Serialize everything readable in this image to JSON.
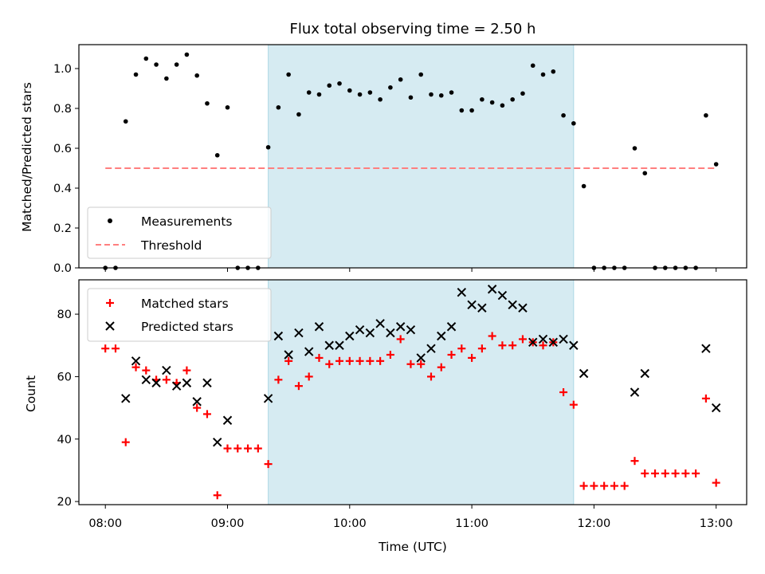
{
  "colors": {
    "span": "#add8e6",
    "measurement": "#000000",
    "threshold": "#ff7f7f",
    "matched": "#ff0000",
    "predicted": "#000000"
  },
  "chart_data": [
    {
      "type": "scatter",
      "title": "Flux total observing time = 2.50 h",
      "xlabel": "",
      "ylabel": "Matched/Predicted stars",
      "xlim": [
        "07:47",
        "13:15"
      ],
      "ylim": [
        0,
        1.12
      ],
      "yticks": [
        "0.0",
        "0.2",
        "0.4",
        "0.6",
        "0.8",
        "1.0"
      ],
      "shaded_span": [
        "09:20",
        "11:50"
      ],
      "threshold": {
        "name": "Threshold",
        "y": 0.5,
        "x": [
          "08:00",
          "13:00"
        ],
        "style": "dashed"
      },
      "legend": {
        "placement": "lower-left",
        "entries": [
          "Measurements",
          "Threshold"
        ]
      },
      "series": [
        {
          "name": "Measurements",
          "marker": "dot",
          "points": [
            [
              "08:00",
              0.0
            ],
            [
              "08:05",
              0.0
            ],
            [
              "08:10",
              0.735
            ],
            [
              "08:15",
              0.97
            ],
            [
              "08:20",
              1.05
            ],
            [
              "08:25",
              1.02
            ],
            [
              "08:30",
              0.95
            ],
            [
              "08:35",
              1.02
            ],
            [
              "08:40",
              1.07
            ],
            [
              "08:45",
              0.965
            ],
            [
              "08:50",
              0.825
            ],
            [
              "08:55",
              0.565
            ],
            [
              "09:00",
              0.805
            ],
            [
              "09:05",
              0.0
            ],
            [
              "09:10",
              0.0
            ],
            [
              "09:15",
              0.0
            ],
            [
              "09:20",
              0.605
            ],
            [
              "09:25",
              0.805
            ],
            [
              "09:30",
              0.97
            ],
            [
              "09:35",
              0.77
            ],
            [
              "09:40",
              0.88
            ],
            [
              "09:45",
              0.87
            ],
            [
              "09:50",
              0.915
            ],
            [
              "09:55",
              0.925
            ],
            [
              "10:00",
              0.89
            ],
            [
              "10:05",
              0.87
            ],
            [
              "10:10",
              0.88
            ],
            [
              "10:15",
              0.845
            ],
            [
              "10:20",
              0.905
            ],
            [
              "10:25",
              0.945
            ],
            [
              "10:30",
              0.855
            ],
            [
              "10:35",
              0.97
            ],
            [
              "10:40",
              0.87
            ],
            [
              "10:45",
              0.865
            ],
            [
              "10:50",
              0.88
            ],
            [
              "10:55",
              0.79
            ],
            [
              "11:00",
              0.79
            ],
            [
              "11:05",
              0.845
            ],
            [
              "11:10",
              0.83
            ],
            [
              "11:15",
              0.815
            ],
            [
              "11:20",
              0.845
            ],
            [
              "11:25",
              0.875
            ],
            [
              "11:30",
              1.015
            ],
            [
              "11:35",
              0.97
            ],
            [
              "11:40",
              0.985
            ],
            [
              "11:45",
              0.765
            ],
            [
              "11:50",
              0.725
            ],
            [
              "11:55",
              0.41
            ],
            [
              "12:00",
              0.0
            ],
            [
              "12:05",
              0.0
            ],
            [
              "12:10",
              0.0
            ],
            [
              "12:15",
              0.0
            ],
            [
              "12:20",
              0.6
            ],
            [
              "12:25",
              0.475
            ],
            [
              "12:30",
              0.0
            ],
            [
              "12:35",
              0.0
            ],
            [
              "12:40",
              0.0
            ],
            [
              "12:45",
              0.0
            ],
            [
              "12:50",
              0.0
            ],
            [
              "12:55",
              0.765
            ],
            [
              "13:00",
              0.52
            ]
          ]
        }
      ]
    },
    {
      "type": "scatter",
      "title": "",
      "xlabel": "Time (UTC)",
      "ylabel": "Count",
      "xlim": [
        "07:47",
        "13:15"
      ],
      "ylim": [
        19,
        91
      ],
      "yticks": [
        "20",
        "40",
        "60",
        "80"
      ],
      "xticks": [
        "08:00",
        "09:00",
        "10:00",
        "11:00",
        "12:00",
        "13:00"
      ],
      "shaded_span": [
        "09:20",
        "11:50"
      ],
      "legend": {
        "placement": "upper-left",
        "entries": [
          "Matched stars",
          "Predicted stars"
        ]
      },
      "series": [
        {
          "name": "Matched stars",
          "marker": "plus",
          "points": [
            [
              "08:00",
              69
            ],
            [
              "08:05",
              69
            ],
            [
              "08:10",
              39
            ],
            [
              "08:15",
              63
            ],
            [
              "08:20",
              62
            ],
            [
              "08:25",
              59
            ],
            [
              "08:30",
              59
            ],
            [
              "08:35",
              58
            ],
            [
              "08:40",
              62
            ],
            [
              "08:45",
              50
            ],
            [
              "08:50",
              48
            ],
            [
              "08:55",
              22
            ],
            [
              "09:00",
              37
            ],
            [
              "09:05",
              37
            ],
            [
              "09:10",
              37
            ],
            [
              "09:15",
              37
            ],
            [
              "09:20",
              32
            ],
            [
              "09:25",
              59
            ],
            [
              "09:30",
              65
            ],
            [
              "09:35",
              57
            ],
            [
              "09:40",
              60
            ],
            [
              "09:45",
              66
            ],
            [
              "09:50",
              64
            ],
            [
              "09:55",
              65
            ],
            [
              "10:00",
              65
            ],
            [
              "10:05",
              65
            ],
            [
              "10:10",
              65
            ],
            [
              "10:15",
              65
            ],
            [
              "10:20",
              67
            ],
            [
              "10:25",
              72
            ],
            [
              "10:30",
              64
            ],
            [
              "10:35",
              64
            ],
            [
              "10:40",
              60
            ],
            [
              "10:45",
              63
            ],
            [
              "10:50",
              67
            ],
            [
              "10:55",
              69
            ],
            [
              "11:00",
              66
            ],
            [
              "11:05",
              69
            ],
            [
              "11:10",
              73
            ],
            [
              "11:15",
              70
            ],
            [
              "11:20",
              70
            ],
            [
              "11:25",
              72
            ],
            [
              "11:30",
              71
            ],
            [
              "11:35",
              70
            ],
            [
              "11:40",
              71
            ],
            [
              "11:45",
              55
            ],
            [
              "11:50",
              51
            ],
            [
              "11:55",
              25
            ],
            [
              "12:00",
              25
            ],
            [
              "12:05",
              25
            ],
            [
              "12:10",
              25
            ],
            [
              "12:15",
              25
            ],
            [
              "12:20",
              33
            ],
            [
              "12:25",
              29
            ],
            [
              "12:30",
              29
            ],
            [
              "12:35",
              29
            ],
            [
              "12:40",
              29
            ],
            [
              "12:45",
              29
            ],
            [
              "12:50",
              29
            ],
            [
              "12:55",
              53
            ],
            [
              "13:00",
              26
            ]
          ]
        },
        {
          "name": "Predicted stars",
          "marker": "x",
          "points": [
            [
              "08:10",
              53
            ],
            [
              "08:15",
              65
            ],
            [
              "08:20",
              59
            ],
            [
              "08:25",
              58
            ],
            [
              "08:30",
              62
            ],
            [
              "08:35",
              57
            ],
            [
              "08:40",
              58
            ],
            [
              "08:45",
              52
            ],
            [
              "08:50",
              58
            ],
            [
              "08:55",
              39
            ],
            [
              "09:00",
              46
            ],
            [
              "09:20",
              53
            ],
            [
              "09:25",
              73
            ],
            [
              "09:30",
              67
            ],
            [
              "09:35",
              74
            ],
            [
              "09:40",
              68
            ],
            [
              "09:45",
              76
            ],
            [
              "09:50",
              70
            ],
            [
              "09:55",
              70
            ],
            [
              "10:00",
              73
            ],
            [
              "10:05",
              75
            ],
            [
              "10:10",
              74
            ],
            [
              "10:15",
              77
            ],
            [
              "10:20",
              74
            ],
            [
              "10:25",
              76
            ],
            [
              "10:30",
              75
            ],
            [
              "10:35",
              66
            ],
            [
              "10:40",
              69
            ],
            [
              "10:45",
              73
            ],
            [
              "10:50",
              76
            ],
            [
              "10:55",
              87
            ],
            [
              "11:00",
              83
            ],
            [
              "11:05",
              82
            ],
            [
              "11:10",
              88
            ],
            [
              "11:15",
              86
            ],
            [
              "11:20",
              83
            ],
            [
              "11:25",
              82
            ],
            [
              "11:30",
              71
            ],
            [
              "11:35",
              72
            ],
            [
              "11:40",
              71
            ],
            [
              "11:45",
              72
            ],
            [
              "11:50",
              70
            ],
            [
              "11:55",
              61
            ],
            [
              "12:20",
              55
            ],
            [
              "12:25",
              61
            ],
            [
              "12:55",
              69
            ],
            [
              "13:00",
              50
            ]
          ]
        }
      ]
    }
  ]
}
